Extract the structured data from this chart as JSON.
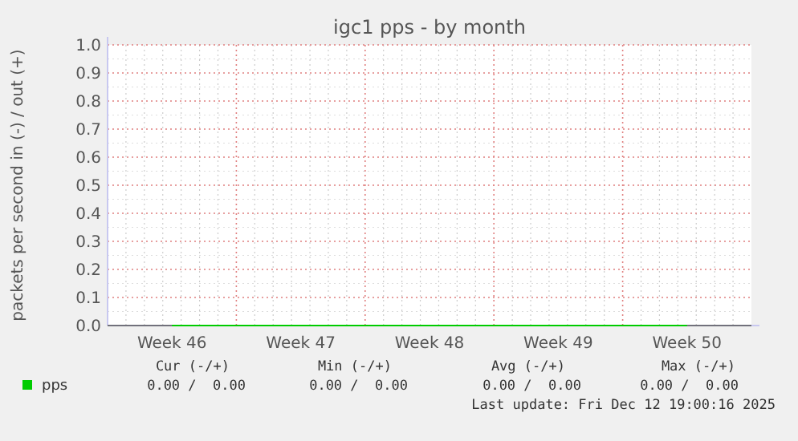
{
  "chart_data": {
    "type": "line",
    "title": "igc1 pps - by month",
    "ylabel": "packets per second in (-) / out (+)",
    "categories": [
      "Week 46",
      "Week 47",
      "Week 48",
      "Week 49",
      "Week 50"
    ],
    "series": [
      {
        "name": "pps",
        "color": "#00cc00",
        "values": [
          0,
          0,
          0,
          0,
          0
        ]
      }
    ],
    "ylim": [
      0,
      1
    ],
    "yticks": [
      {
        "value": 0,
        "label": "0.0"
      },
      {
        "value": 0.1,
        "label": "0.1"
      },
      {
        "value": 0.2,
        "label": "0.2"
      },
      {
        "value": 0.3,
        "label": "0.3"
      },
      {
        "value": 0.4,
        "label": "0.4"
      },
      {
        "value": 0.5,
        "label": "0.5"
      },
      {
        "value": 0.6,
        "label": "0.6"
      },
      {
        "value": 0.7,
        "label": "0.7"
      },
      {
        "value": 0.8,
        "label": "0.8"
      },
      {
        "value": 0.9,
        "label": "0.9"
      },
      {
        "value": 1,
        "label": "1.0"
      }
    ],
    "grid": true,
    "legend": "bottom",
    "annotations": [
      "Cur (-/+)",
      "Min (-/+)",
      "Avg (-/+)",
      "Max (-/+)",
      "0.00 /  0.00",
      "0.00 /  0.00",
      "0.00 /  0.00",
      "0.00 /  0.00",
      "Last update: Fri Dec 12 19:00:16 2025"
    ]
  }
}
